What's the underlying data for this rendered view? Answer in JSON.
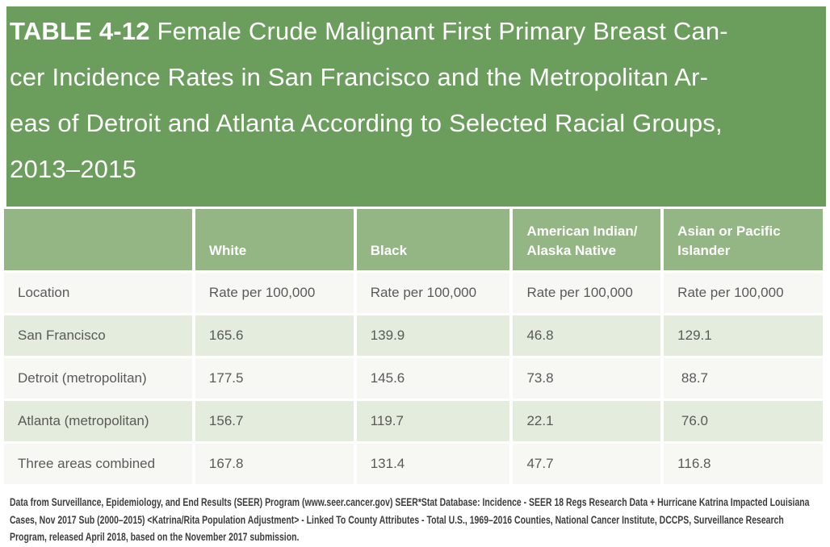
{
  "title": {
    "label": "TABLE 4-12",
    "lines": [
      " Female Crude Malignant First Primary Breast Can-",
      "cer Incidence Rates in San Francisco and the Metropolitan Ar-",
      "eas of Detroit and Atlanta According to Selected Racial Groups,",
      "2013–2015"
    ],
    "background": "#6b9d5c",
    "text_color": "#ffffff"
  },
  "table": {
    "header": {
      "background": "#94b684",
      "text_color": "#ffffff",
      "columns": [
        {
          "lines": [
            "White"
          ]
        },
        {
          "lines": [
            "Black"
          ]
        },
        {
          "lines": [
            "American Indian/",
            "Alaska Native"
          ]
        },
        {
          "lines": [
            "Asian or Pacific",
            "Islander"
          ]
        }
      ]
    },
    "rows": [
      {
        "location": "Location",
        "values": [
          "Rate per 100,000",
          "Rate per 100,000",
          "Rate per 100,000",
          "Rate per 100,000"
        ]
      },
      {
        "location": "San Francisco",
        "values": [
          "165.6",
          "139.9",
          "46.8",
          "129.1"
        ]
      },
      {
        "location": "Detroit (metropolitan)",
        "values": [
          "177.5",
          "145.6",
          "73.8",
          " 88.7"
        ]
      },
      {
        "location": "Atlanta (metropolitan)",
        "values": [
          "156.7",
          "119.7",
          "22.1",
          " 76.0"
        ]
      },
      {
        "location": "Three areas combined",
        "values": [
          "167.8",
          "131.4",
          "47.7",
          "116.8"
        ]
      }
    ],
    "row_colors": {
      "white_row": "#f7f8f4",
      "green_row": "#e3ecdd"
    },
    "body_text_color": "#5a5a58"
  },
  "footnote": {
    "text": "Data from Surveillance, Epidemiology, and End Results (SEER) Program (www.seer.cancer.gov) SEER*Stat Database: Incidence - SEER 18 Regs Research Data + Hurricane Katrina Impacted Louisiana Cases, Nov 2017 Sub (2000–2015) <Katrina/Rita Population Adjustment> - Linked To County Attributes - Total U.S., 1969–2016 Counties, National Cancer Institute, DCCPS, Surveillance Research Program, released April 2018, based on the November 2017 submission.",
    "text_color": "#3d3d3d"
  }
}
